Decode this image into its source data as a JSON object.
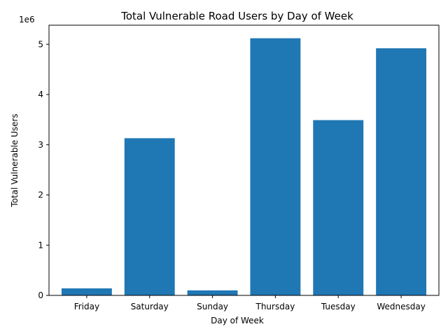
{
  "chart_data": {
    "type": "bar",
    "title": "Total Vulnerable Road Users by Day of Week",
    "xlabel": "Day of Week",
    "ylabel": "Total Vulnerable Users",
    "y_offset_label": "1e6",
    "categories": [
      "Friday",
      "Saturday",
      "Sunday",
      "Thursday",
      "Tuesday",
      "Wednesday"
    ],
    "values": [
      140000,
      3130000,
      100000,
      5120000,
      3490000,
      4920000
    ],
    "ylim": [
      0,
      5380000
    ],
    "yticks": [
      0,
      1000000,
      2000000,
      3000000,
      4000000,
      5000000
    ],
    "ytick_labels": [
      "0",
      "1",
      "2",
      "3",
      "4",
      "5"
    ],
    "bar_color": "#1f77b4",
    "grid": false,
    "legend": "none"
  }
}
